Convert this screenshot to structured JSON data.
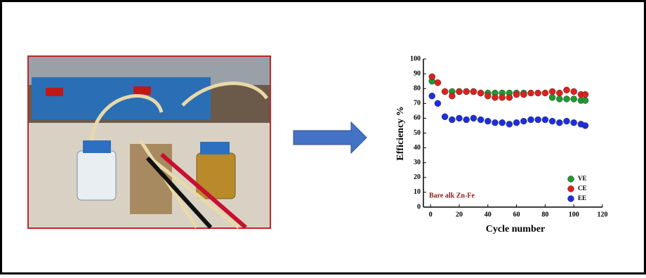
{
  "chart_data": {
    "type": "scatter",
    "xlabel": "Cycle number",
    "ylabel": "Efficiency %",
    "annotation": "Bare alk Zn-Fe",
    "xlim": [
      -5,
      120
    ],
    "xticks": [
      0,
      20,
      40,
      60,
      80,
      100,
      120
    ],
    "ylim": [
      0,
      100
    ],
    "yticks": [
      0,
      10,
      20,
      30,
      40,
      50,
      60,
      70,
      80,
      90,
      100
    ],
    "legend": "lower right",
    "series": [
      {
        "name": "VE",
        "color": "#1e9a2e",
        "x": [
          1,
          15,
          20,
          25,
          30,
          35,
          40,
          45,
          50,
          55,
          60,
          65,
          85,
          90,
          95,
          100,
          105,
          108
        ],
        "values": [
          85,
          78,
          78,
          78,
          78,
          77,
          77,
          77,
          77,
          77,
          77,
          77,
          74,
          73,
          73,
          73,
          72,
          72
        ]
      },
      {
        "name": "CE",
        "color": "#e0201c",
        "x": [
          1,
          5,
          10,
          15,
          20,
          25,
          30,
          35,
          40,
          45,
          50,
          55,
          60,
          65,
          70,
          75,
          80,
          85,
          90,
          95,
          100,
          105,
          108
        ],
        "values": [
          88,
          84,
          78,
          75,
          78,
          78,
          78,
          77,
          75,
          74,
          74,
          74,
          76,
          76,
          77,
          77,
          77,
          78,
          77,
          79,
          78,
          76,
          76
        ]
      },
      {
        "name": "EE",
        "color": "#1c2ee0",
        "x": [
          1,
          5,
          10,
          15,
          20,
          25,
          30,
          35,
          40,
          45,
          50,
          55,
          60,
          65,
          70,
          75,
          80,
          85,
          90,
          95,
          100,
          105,
          108
        ],
        "values": [
          75,
          70,
          61,
          59,
          60,
          59,
          60,
          59,
          58,
          57,
          57,
          56,
          57,
          58,
          59,
          59,
          59,
          58,
          57,
          58,
          57,
          56,
          55
        ]
      }
    ]
  }
}
